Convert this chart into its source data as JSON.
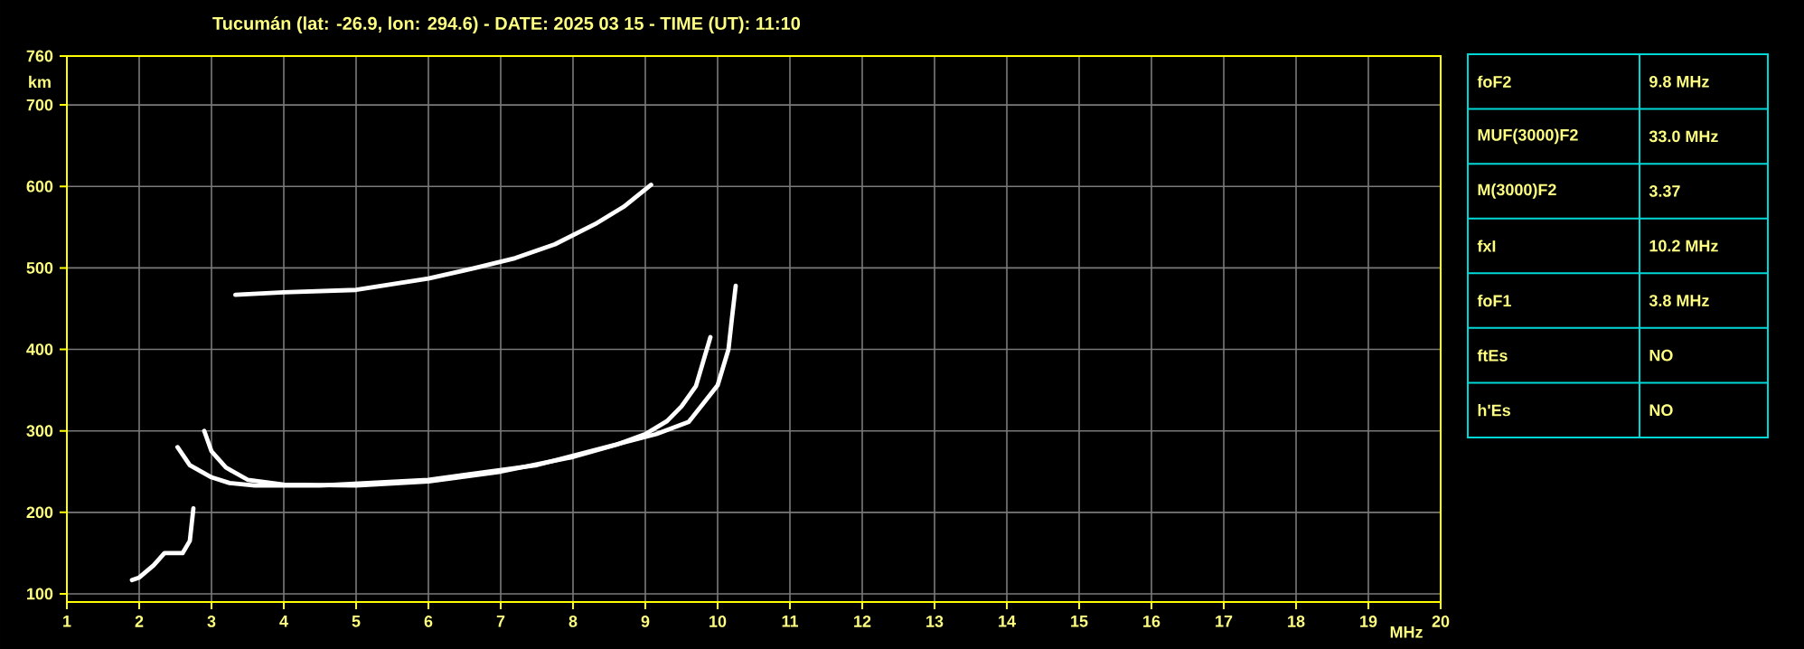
{
  "chart_data": [
    {
      "type": "line",
      "title": "Tucumán (lat: -26.9, lon: 294.6) - DATE: 2025 03 15 - TIME (UT): 11:10",
      "xlabel": "MHz",
      "ylabel": "km",
      "xlim": [
        1,
        20
      ],
      "ylim": [
        90,
        760
      ],
      "xticks": [
        1,
        2,
        3,
        4,
        5,
        6,
        7,
        8,
        9,
        10,
        11,
        12,
        13,
        14,
        15,
        16,
        17,
        18,
        19,
        20
      ],
      "yticks": [
        100,
        200,
        300,
        400,
        500,
        600,
        700,
        760
      ],
      "grid": true,
      "series": [
        {
          "color": "#ffffff",
          "x": [
            2.9,
            3.0,
            3.2,
            3.5,
            4.0,
            5.0,
            6.0,
            7.0,
            8.0,
            8.6,
            9.0,
            9.3,
            9.5,
            9.7,
            9.8,
            9.9
          ],
          "values": [
            300,
            275,
            255,
            240,
            234,
            233,
            238,
            250,
            268,
            283,
            296,
            312,
            330,
            355,
            385,
            415
          ]
        },
        {
          "color": "#ffffff",
          "x": [
            2.53,
            2.7,
            3.0,
            3.25,
            3.6,
            4.5,
            6.0,
            7.5,
            9.15,
            9.6,
            10.0,
            10.15,
            10.2,
            10.25
          ],
          "values": [
            280,
            258,
            243,
            236,
            233,
            233,
            240,
            258,
            296,
            311,
            356,
            400,
            440,
            478
          ]
        },
        {
          "color": "#ffffff",
          "x": [
            1.9,
            2.0,
            2.2,
            2.35,
            2.6,
            2.7,
            2.75
          ],
          "values": [
            117,
            120,
            135,
            150,
            150,
            165,
            205
          ]
        },
        {
          "color": "#ffffff",
          "x": [
            3.33,
            4.0,
            5.0,
            6.0,
            6.65,
            7.2,
            7.75,
            8.33,
            8.7,
            9.08
          ],
          "values": [
            467,
            470,
            473,
            487,
            500,
            512,
            529,
            555,
            575,
            602
          ]
        }
      ]
    },
    {
      "type": "other",
      "annotations": [
        "foF2",
        "9.8 MHz",
        "MUF(3000)F2",
        "33.0 MHz",
        "M(3000)F2",
        "3.37",
        "fxI",
        "10.2 MHz",
        "foF1",
        "3.8 MHz",
        "ftEs",
        "NO",
        "h'Es",
        "NO"
      ]
    }
  ]
}
